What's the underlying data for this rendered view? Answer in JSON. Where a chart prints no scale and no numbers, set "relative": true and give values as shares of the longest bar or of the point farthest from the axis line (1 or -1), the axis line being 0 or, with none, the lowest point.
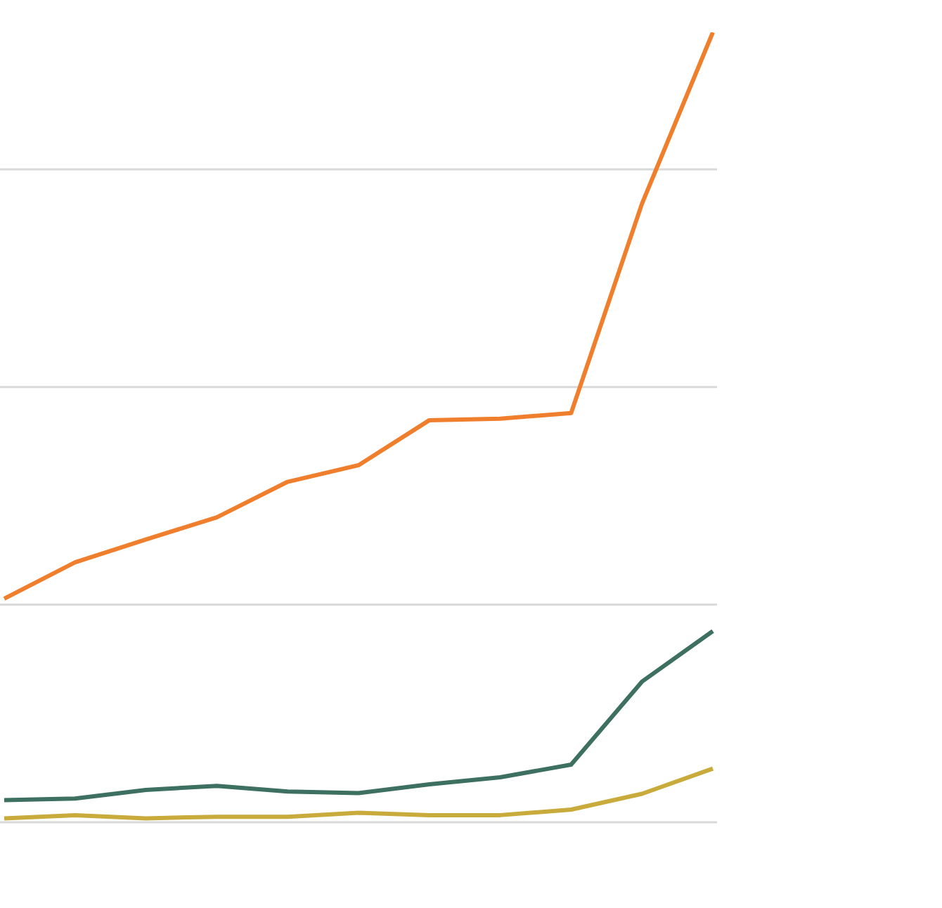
{
  "chart_data": {
    "type": "line",
    "relative": true,
    "grid": "y",
    "marker": "none",
    "line_style": "solid",
    "categories": [
      null,
      null,
      null,
      null,
      null,
      null,
      null,
      null,
      null,
      null,
      null
    ],
    "series": [
      {
        "color": "#f07f2d",
        "values": [
          0.283,
          0.329,
          0.358,
          0.386,
          0.431,
          0.452,
          0.509,
          0.511,
          0.518,
          0.783,
          1
        ]
      },
      {
        "color": "#3d7060",
        "values": [
          0.028,
          0.03,
          0.041,
          0.046,
          0.039,
          0.037,
          0.048,
          0.057,
          0.073,
          0.178,
          0.242
        ]
      },
      {
        "color": "#c9ab3c",
        "values": [
          0.005,
          0.009,
          0.005,
          0.007,
          0.007,
          0.012,
          0.009,
          0.009,
          0.016,
          0.036,
          0.068
        ]
      }
    ]
  }
}
